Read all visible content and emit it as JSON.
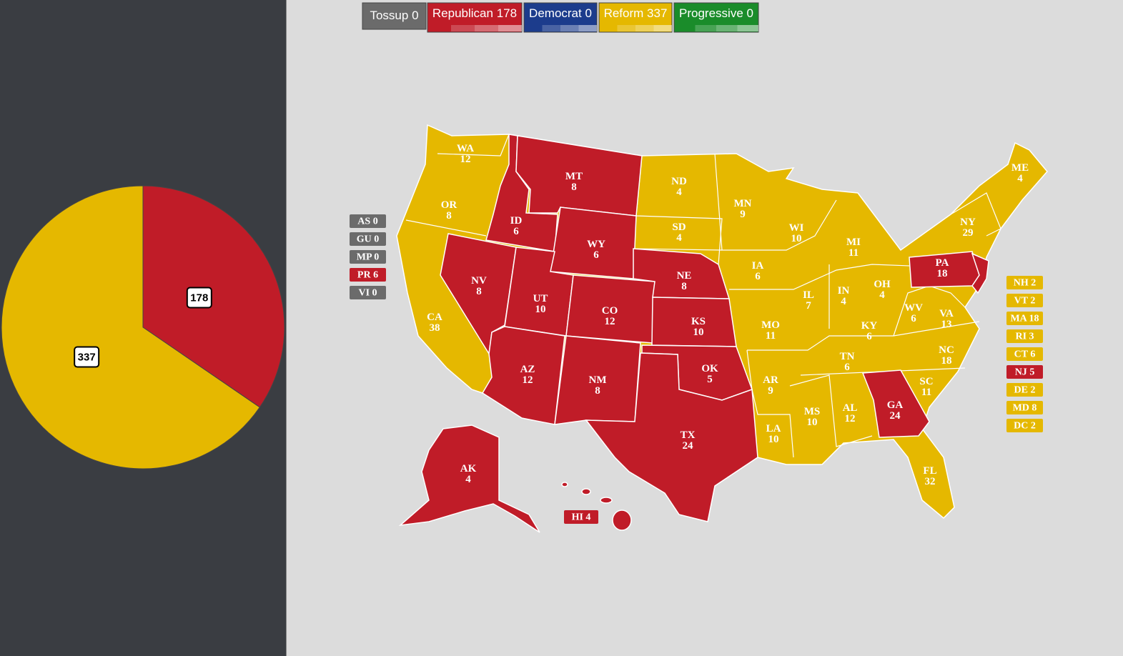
{
  "parties": [
    {
      "name": "Tossup",
      "votes": 0,
      "color": "#6b6b6b"
    },
    {
      "name": "Republican",
      "votes": 178,
      "color": "#c01c28"
    },
    {
      "name": "Democrat",
      "votes": 0,
      "color": "#1c3c8c"
    },
    {
      "name": "Reform",
      "votes": 337,
      "color": "#e5b800"
    },
    {
      "name": "Progressive",
      "votes": 0,
      "color": "#1a8c2a"
    }
  ],
  "chart_data": {
    "type": "pie",
    "values": [
      178,
      337
    ],
    "colors": [
      "#c01c28",
      "#e5b800"
    ]
  },
  "states": [
    {
      "abbr": "WA",
      "votes": 12,
      "party": "Reform"
    },
    {
      "abbr": "OR",
      "votes": 8,
      "party": "Reform"
    },
    {
      "abbr": "CA",
      "votes": 38,
      "party": "Reform"
    },
    {
      "abbr": "NV",
      "votes": 8,
      "party": "Republican"
    },
    {
      "abbr": "ID",
      "votes": 6,
      "party": "Republican"
    },
    {
      "abbr": "MT",
      "votes": 8,
      "party": "Republican"
    },
    {
      "abbr": "WY",
      "votes": 6,
      "party": "Republican"
    },
    {
      "abbr": "UT",
      "votes": 10,
      "party": "Republican"
    },
    {
      "abbr": "CO",
      "votes": 12,
      "party": "Republican"
    },
    {
      "abbr": "AZ",
      "votes": 12,
      "party": "Republican"
    },
    {
      "abbr": "NM",
      "votes": 8,
      "party": "Republican"
    },
    {
      "abbr": "ND",
      "votes": 4,
      "party": "Reform"
    },
    {
      "abbr": "SD",
      "votes": 4,
      "party": "Reform"
    },
    {
      "abbr": "NE",
      "votes": 8,
      "party": "Republican"
    },
    {
      "abbr": "KS",
      "votes": 10,
      "party": "Republican"
    },
    {
      "abbr": "OK",
      "votes": 5,
      "party": "Republican"
    },
    {
      "abbr": "TX",
      "votes": 24,
      "party": "Republican"
    },
    {
      "abbr": "MN",
      "votes": 9,
      "party": "Reform"
    },
    {
      "abbr": "IA",
      "votes": 6,
      "party": "Reform"
    },
    {
      "abbr": "MO",
      "votes": 11,
      "party": "Reform"
    },
    {
      "abbr": "AR",
      "votes": 9,
      "party": "Reform"
    },
    {
      "abbr": "LA",
      "votes": 10,
      "party": "Reform"
    },
    {
      "abbr": "WI",
      "votes": 10,
      "party": "Reform"
    },
    {
      "abbr": "IL",
      "votes": 7,
      "party": "Reform"
    },
    {
      "abbr": "MI",
      "votes": 11,
      "party": "Reform"
    },
    {
      "abbr": "IN",
      "votes": 4,
      "party": "Reform"
    },
    {
      "abbr": "OH",
      "votes": 4,
      "party": "Reform"
    },
    {
      "abbr": "KY",
      "votes": 6,
      "party": "Reform"
    },
    {
      "abbr": "TN",
      "votes": 6,
      "party": "Reform"
    },
    {
      "abbr": "MS",
      "votes": 10,
      "party": "Reform"
    },
    {
      "abbr": "AL",
      "votes": 12,
      "party": "Reform"
    },
    {
      "abbr": "GA",
      "votes": 24,
      "party": "Republican"
    },
    {
      "abbr": "FL",
      "votes": 32,
      "party": "Reform"
    },
    {
      "abbr": "SC",
      "votes": 11,
      "party": "Reform"
    },
    {
      "abbr": "NC",
      "votes": 18,
      "party": "Reform"
    },
    {
      "abbr": "VA",
      "votes": 13,
      "party": "Reform"
    },
    {
      "abbr": "WV",
      "votes": 6,
      "party": "Reform"
    },
    {
      "abbr": "PA",
      "votes": 18,
      "party": "Republican"
    },
    {
      "abbr": "NY",
      "votes": 29,
      "party": "Reform"
    },
    {
      "abbr": "ME",
      "votes": 4,
      "party": "Reform"
    },
    {
      "abbr": "AK",
      "votes": 4,
      "party": "Republican"
    }
  ],
  "hawaii": {
    "abbr": "HI",
    "votes": 4,
    "party": "Republican"
  },
  "territories": [
    {
      "abbr": "AS",
      "votes": 0,
      "party": "Tossup"
    },
    {
      "abbr": "GU",
      "votes": 0,
      "party": "Tossup"
    },
    {
      "abbr": "MP",
      "votes": 0,
      "party": "Tossup"
    },
    {
      "abbr": "PR",
      "votes": 6,
      "party": "Republican"
    },
    {
      "abbr": "VI",
      "votes": 0,
      "party": "Tossup"
    }
  ],
  "small_states": [
    {
      "abbr": "NH",
      "votes": 2,
      "party": "Reform"
    },
    {
      "abbr": "VT",
      "votes": 2,
      "party": "Reform"
    },
    {
      "abbr": "MA",
      "votes": 18,
      "party": "Reform"
    },
    {
      "abbr": "RI",
      "votes": 3,
      "party": "Reform"
    },
    {
      "abbr": "CT",
      "votes": 6,
      "party": "Reform"
    },
    {
      "abbr": "NJ",
      "votes": 5,
      "party": "Republican"
    },
    {
      "abbr": "DE",
      "votes": 2,
      "party": "Reform"
    },
    {
      "abbr": "MD",
      "votes": 8,
      "party": "Reform"
    },
    {
      "abbr": "DC",
      "votes": 2,
      "party": "Reform"
    }
  ]
}
